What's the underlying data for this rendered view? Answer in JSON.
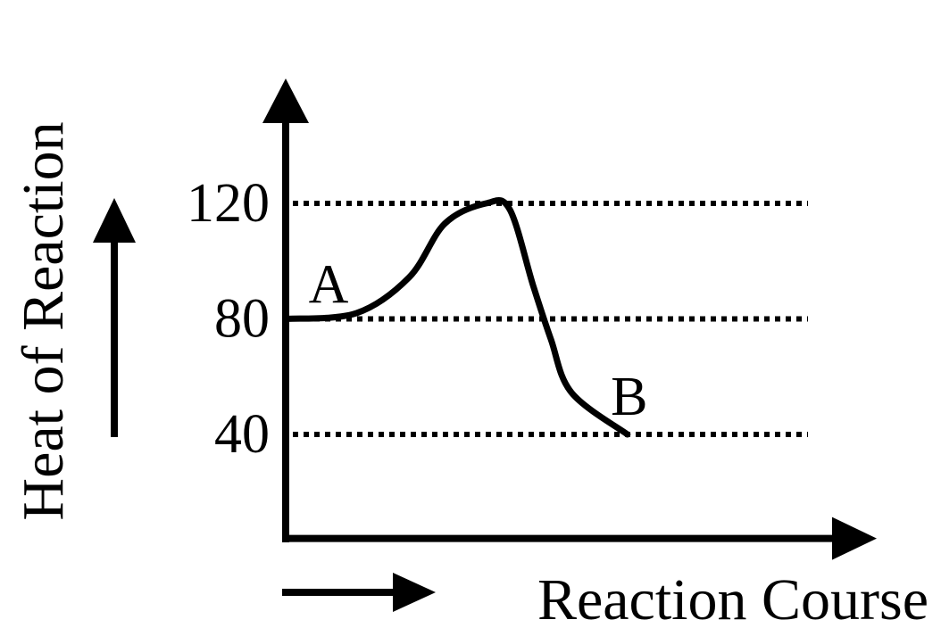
{
  "chart_data": {
    "type": "line",
    "xlabel": "Reaction Course",
    "ylabel": "Heat of Reaction",
    "x": [
      0,
      1.2,
      2.1,
      2.7,
      3.4,
      3.8,
      4.2,
      4.5,
      4.85,
      5.8
    ],
    "values": [
      80,
      82,
      94.5,
      113,
      120,
      118,
      91.5,
      73,
      54.5,
      40
    ],
    "color": "#000000",
    "xlim": [
      0,
      10
    ],
    "ylim": [
      4,
      160
    ],
    "yticks": [
      40,
      80,
      120
    ],
    "grid": true,
    "annotations": [
      "A",
      "B"
    ]
  }
}
